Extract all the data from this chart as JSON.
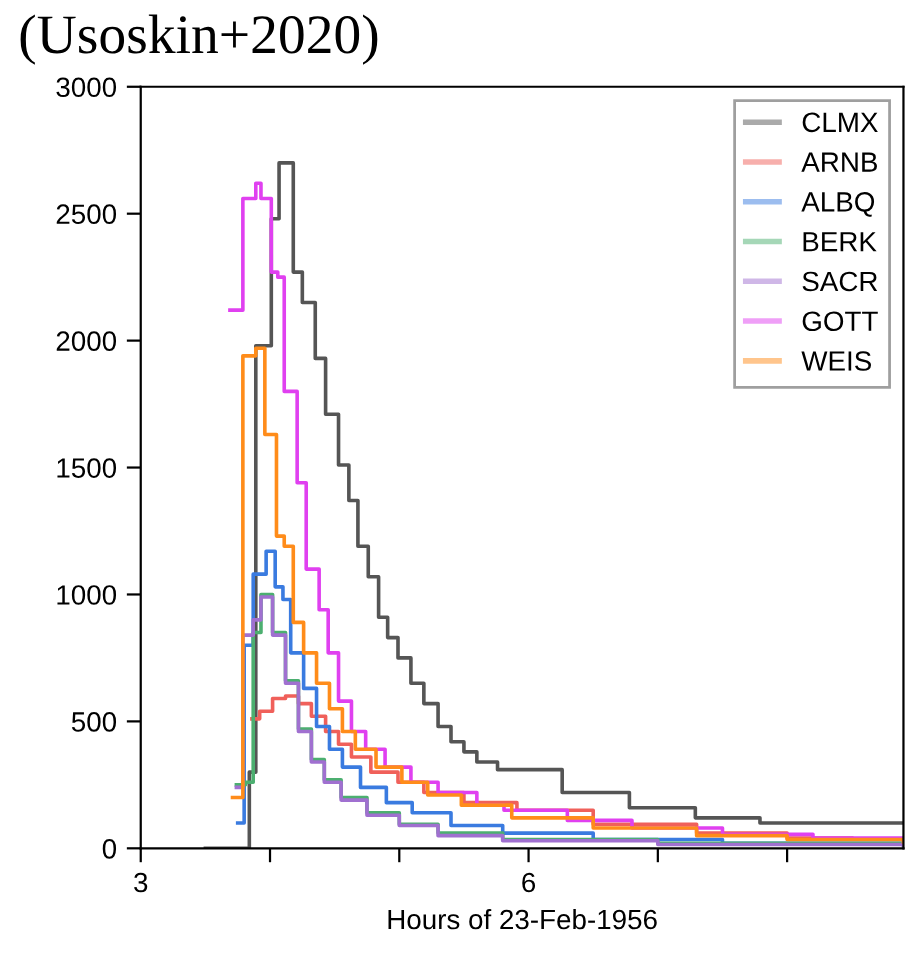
{
  "chart_data": {
    "type": "step",
    "annotations": [
      "(Usoskin+2020)"
    ],
    "xlabel": "Hours of 23-Feb-1956",
    "xlim": [
      3,
      8.9
    ],
    "xticks": [
      3,
      {
        "value": 4,
        "label": null
      },
      {
        "value": 5,
        "label": null
      },
      6,
      {
        "value": 7,
        "label": null
      },
      {
        "value": 8,
        "label": null
      }
    ],
    "ylim": [
      0,
      3000
    ],
    "yticks": [
      0,
      500,
      1000,
      1500,
      2000,
      2500,
      3000
    ],
    "grid": false,
    "legend": "top right",
    "line_style": "solid",
    "marker": "none",
    "series": [
      {
        "name": "CLMX",
        "color": "#555555",
        "x": [
          3.5,
          3.84,
          3.89,
          4.01,
          4.07,
          4.18,
          4.25,
          4.35,
          4.43,
          4.53,
          4.61,
          4.68,
          4.76,
          4.84,
          4.91,
          4.99,
          5.09,
          5.19,
          5.3,
          5.4,
          5.5,
          5.6,
          5.76,
          6.26,
          6.78,
          7.29,
          7.79,
          8.9
        ],
        "values": [
          0,
          300,
          1980,
          2480,
          2700,
          2270,
          2150,
          1930,
          1710,
          1510,
          1370,
          1190,
          1070,
          910,
          830,
          750,
          650,
          570,
          480,
          420,
          380,
          340,
          310,
          220,
          160,
          120,
          100,
          100
        ]
      },
      {
        "name": "ARNB",
        "color": "#f0605a",
        "x": [
          3.86,
          3.92,
          4.02,
          4.12,
          4.22,
          4.32,
          4.43,
          4.53,
          4.63,
          4.78,
          4.99,
          5.19,
          5.5,
          5.91,
          6.5,
          7.3,
          8.0,
          8.5
        ],
        "values": [
          510,
          540,
          590,
          600,
          570,
          520,
          460,
          410,
          360,
          300,
          260,
          220,
          180,
          150,
          95,
          60,
          40,
          40
        ]
      },
      {
        "name": "ALBQ",
        "color": "#3a7be0",
        "x": [
          3.75,
          3.8,
          3.87,
          3.97,
          4.04,
          4.1,
          4.16,
          4.26,
          4.36,
          4.46,
          4.56,
          4.7,
          4.9,
          5.1,
          5.4,
          5.8,
          6.5,
          7.5,
          8.9
        ],
        "values": [
          100,
          800,
          1080,
          1170,
          1030,
          980,
          770,
          630,
          480,
          390,
          320,
          240,
          180,
          140,
          90,
          60,
          35,
          20,
          15
        ]
      },
      {
        "name": "BERK",
        "color": "#4caf70",
        "x": [
          3.74,
          3.81,
          3.87,
          3.93,
          4.02,
          4.12,
          4.22,
          4.32,
          4.42,
          4.55,
          4.75,
          5.0,
          5.3,
          5.8,
          7.0,
          8.9
        ],
        "values": [
          250,
          260,
          850,
          1000,
          850,
          660,
          470,
          350,
          270,
          200,
          140,
          95,
          60,
          35,
          20,
          15
        ]
      },
      {
        "name": "SACR",
        "color": "#a070d0",
        "x": [
          3.74,
          3.79,
          3.87,
          3.93,
          4.02,
          4.12,
          4.22,
          4.32,
          4.42,
          4.55,
          4.75,
          5.0,
          5.3,
          5.8,
          7.0,
          8.9
        ],
        "values": [
          240,
          840,
          900,
          990,
          840,
          650,
          460,
          340,
          260,
          190,
          130,
          90,
          50,
          30,
          15,
          10
        ]
      },
      {
        "name": "GOTT",
        "color": "#e040f0",
        "x": [
          3.69,
          3.79,
          3.89,
          3.93,
          4.01,
          4.06,
          4.11,
          4.21,
          4.28,
          4.38,
          4.45,
          4.53,
          4.63,
          4.74,
          4.89,
          5.09,
          5.3,
          5.6,
          5.81,
          6.3,
          6.8,
          7.5,
          8.2,
          8.9
        ],
        "values": [
          2120,
          2560,
          2620,
          2560,
          2270,
          2250,
          1800,
          1440,
          1100,
          940,
          770,
          580,
          460,
          390,
          320,
          260,
          220,
          170,
          150,
          110,
          80,
          55,
          40,
          30
        ]
      },
      {
        "name": "WEIS",
        "color": "#ff8c1a",
        "x": [
          3.71,
          3.79,
          3.89,
          3.96,
          4.05,
          4.11,
          4.18,
          4.26,
          4.36,
          4.46,
          4.56,
          4.66,
          4.82,
          5.02,
          5.22,
          5.48,
          5.87,
          6.5,
          7.3,
          8.0,
          8.9
        ],
        "values": [
          200,
          1940,
          1970,
          1630,
          1230,
          1190,
          890,
          770,
          650,
          550,
          460,
          390,
          320,
          260,
          210,
          170,
          120,
          80,
          50,
          35,
          25
        ]
      }
    ]
  }
}
